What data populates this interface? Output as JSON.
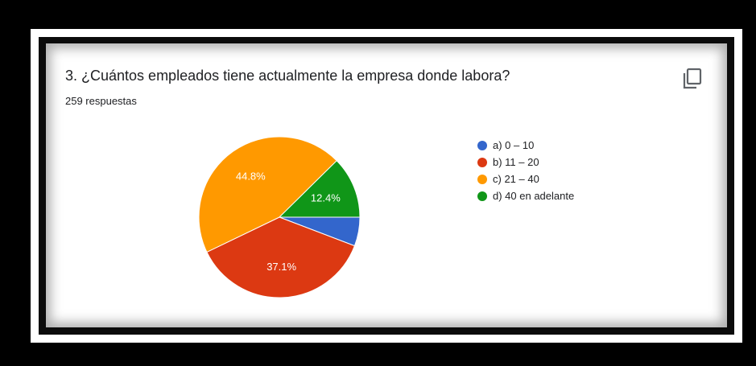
{
  "question": {
    "title": "3. ¿Cuántos empleados tiene actualmente la empresa donde labora?",
    "responses": "259 respuestas"
  },
  "chart_data": {
    "type": "pie",
    "title": "",
    "slices": [
      {
        "label": "a) 0 – 10",
        "value": 5.8,
        "display": "",
        "color": "#3366cc"
      },
      {
        "label": "b) 11 – 20",
        "value": 37.1,
        "display": "37.1%",
        "color": "#dc3912"
      },
      {
        "label": "c) 21 – 40",
        "value": 44.8,
        "display": "44.8%",
        "color": "#ff9900"
      },
      {
        "label": "d) 40 en adelante",
        "value": 12.4,
        "display": "12.4%",
        "color": "#109618"
      }
    ],
    "legend_position": "right"
  },
  "toolbar": {
    "copy_icon": "copy-icon"
  }
}
